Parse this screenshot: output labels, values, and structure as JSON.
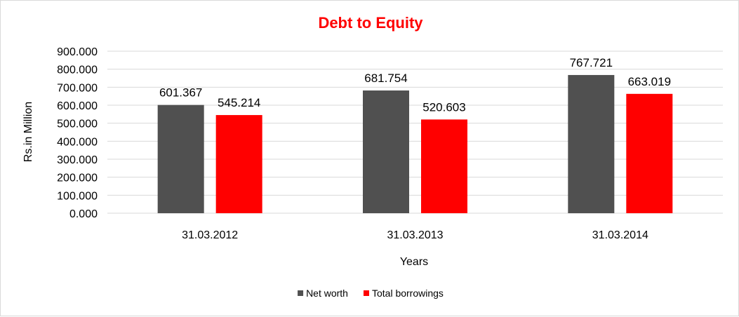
{
  "chart_data": {
    "type": "bar",
    "title": "Debt to Equity",
    "xlabel": "Years",
    "ylabel": "Rs.in Million",
    "categories": [
      "31.03.2012",
      "31.03.2013",
      "31.03.2014"
    ],
    "series": [
      {
        "name": "Net worth",
        "values": [
          601.367,
          681.754,
          767.721
        ],
        "labels": [
          "601.367",
          "681.754",
          "767.721"
        ],
        "color": "#505050"
      },
      {
        "name": "Total borrowings",
        "values": [
          545.214,
          520.603,
          663.019
        ],
        "labels": [
          "545.214",
          "520.603",
          "663.019"
        ],
        "color": "#ff0000"
      }
    ],
    "ylim": [
      0,
      900
    ],
    "yticks": [
      0,
      100,
      200,
      300,
      400,
      500,
      600,
      700,
      800,
      900
    ],
    "ytick_labels": [
      "0.000",
      "100.000",
      "200.000",
      "300.000",
      "400.000",
      "500.000",
      "600.000",
      "700.000",
      "800.000",
      "900.000"
    ],
    "grid": true,
    "legend_position": "bottom",
    "title_color": "#ff0000"
  }
}
